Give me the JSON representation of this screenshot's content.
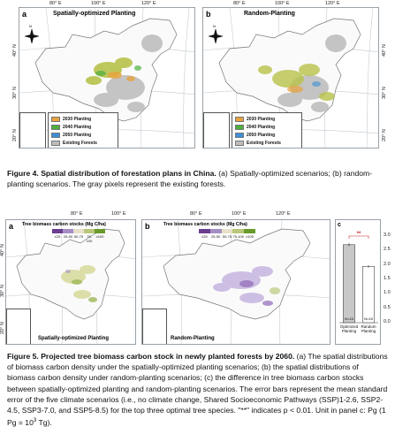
{
  "figure4": {
    "panel_a": {
      "label": "a",
      "title": "Spatially-optimized Planting"
    },
    "panel_b": {
      "label": "b",
      "title": "Random-Planting"
    },
    "lon_ticks": [
      "80° E",
      "100° E",
      "120° E"
    ],
    "lat_ticks": [
      "40° N",
      "30° N",
      "20° N"
    ],
    "legend": [
      {
        "label": "2030 Planting",
        "color": "#e8a33c"
      },
      {
        "label": "2040 Planting",
        "color": "#4caf3f"
      },
      {
        "label": "2050 Planting",
        "color": "#3b8fd6"
      },
      {
        "label": "Existing Forests",
        "color": "#bdbdbd"
      }
    ],
    "caption_bold": "Figure 4. Spatial distribution of forestation plans in China.",
    "caption_rest": " (a) Spatially-optimized scenarios; (b) random-planting scenarios. The gray pixels represent the existing forests."
  },
  "figure5": {
    "panel_a": {
      "label": "a",
      "title": "Spatially-optimized Planting"
    },
    "panel_b": {
      "label": "b",
      "title": "Random-Planting"
    },
    "panel_c": {
      "label": "c"
    },
    "lon_ticks": [
      "80° E",
      "100° E",
      "120° E"
    ],
    "lat_ticks": [
      "40° N",
      "30° N",
      "20° N"
    ],
    "colorbar_title": "Tree biomass carbon stocks (Mg C/ha)",
    "colorbar_labels": [
      "≤25",
      "25-50",
      "50-75",
      "75-100",
      "≥100"
    ],
    "colorbar_colors": [
      "#6a3d8f",
      "#a58dc4",
      "#e8e0c8",
      "#b8c77a",
      "#6a9a2c"
    ],
    "caption_bold": "Figure 5. Projected tree biomass carbon stock in newly planted forests by 2060.",
    "caption_rest": " (a) The spatial distributions of biomass carbon density under the spatially-optimized planting scenarios; (b) the spatial distributions of biomass carbon density under random-planting scenarios; (c) the difference in tree biomass carbon stocks between spatially-optimized planting and random-planting scenarios. The error bars represent the mean standard error of the five climate scenarios (i.e., no climate change, Shared Socioeconomic Pathways (SSP)1-2.6, SSP2-4.5, SSP3-7.0, and SSP5-8.5) for the top three optimal tree species. \"**\" indicates p < 0.01. Unit in panel c: Pg (1 Pg = 10",
    "caption_sup": "3",
    "caption_end": " Tg).",
    "significance": "**"
  },
  "chart_data": {
    "type": "bar",
    "categories": [
      "Optimized Planting",
      "Random Planting"
    ],
    "values": [
      2.7,
      1.95
    ],
    "errors": [
      0.05,
      0.04
    ],
    "annotations": [
      "N=15",
      "N=15"
    ],
    "significance": "**",
    "ylim": [
      0,
      3.0
    ],
    "yticks": [
      "0.0",
      "0.5",
      "1.0",
      "1.5",
      "2.0",
      "2.5",
      "3.0"
    ],
    "bar_colors": [
      "#c8c8c8",
      "#ffffff"
    ]
  }
}
